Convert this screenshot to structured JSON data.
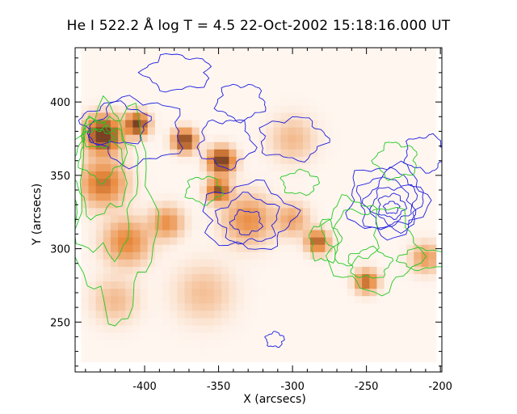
{
  "chart_data": {
    "type": "heatmap",
    "title": "He I  522.2 Å log T = 4.5 22-Oct-2002 15:18:16.000 UT",
    "xlabel": "X (arcsecs)",
    "ylabel": "Y (arcsecs)",
    "xlim": [
      -447,
      -199
    ],
    "ylim": [
      216,
      437
    ],
    "xticks": [
      -400,
      -350,
      -300,
      -250,
      -200
    ],
    "yticks": [
      250,
      300,
      350,
      400
    ],
    "image_extent": {
      "x": [
        -443,
        -203
      ],
      "y": [
        223,
        436
      ]
    },
    "colormap": "red temperature (white - orange - red - black)",
    "colors": {
      "image_low": "#fff6f0",
      "image_mid": "#e98a3e",
      "image_high": "#1a000d",
      "contour_a": "#1c1ce0",
      "contour_b": "#22c822",
      "axis": "#000000"
    },
    "bright_regions": [
      {
        "x": -428,
        "y": 378,
        "r": 11,
        "intensity": 1.0
      },
      {
        "x": -405,
        "y": 385,
        "r": 7,
        "intensity": 0.9
      },
      {
        "x": -373,
        "y": 374,
        "r": 7,
        "intensity": 0.85
      },
      {
        "x": -348,
        "y": 360,
        "r": 8,
        "intensity": 0.95
      },
      {
        "x": -350,
        "y": 340,
        "r": 7,
        "intensity": 0.75
      },
      {
        "x": -428,
        "y": 345,
        "r": 14,
        "intensity": 0.55
      },
      {
        "x": -412,
        "y": 305,
        "r": 14,
        "intensity": 0.45
      },
      {
        "x": -385,
        "y": 318,
        "r": 10,
        "intensity": 0.4
      },
      {
        "x": -330,
        "y": 320,
        "r": 15,
        "intensity": 0.4
      },
      {
        "x": -300,
        "y": 320,
        "r": 10,
        "intensity": 0.3
      },
      {
        "x": -283,
        "y": 305,
        "r": 7,
        "intensity": 0.65
      },
      {
        "x": -250,
        "y": 278,
        "r": 7,
        "intensity": 0.6
      },
      {
        "x": -210,
        "y": 294,
        "r": 9,
        "intensity": 0.35
      },
      {
        "x": -420,
        "y": 265,
        "r": 14,
        "intensity": 0.2
      },
      {
        "x": -360,
        "y": 270,
        "r": 18,
        "intensity": 0.18
      },
      {
        "x": -300,
        "y": 375,
        "r": 14,
        "intensity": 0.2
      }
    ],
    "contours_a": [
      {
        "x": -233,
        "y": 328,
        "rx": 5,
        "ry": 4
      },
      {
        "x": -233,
        "y": 329,
        "rx": 9,
        "ry": 8
      },
      {
        "x": -233,
        "y": 330,
        "rx": 13,
        "ry": 12
      },
      {
        "x": -233,
        "y": 331,
        "rx": 17,
        "ry": 16
      },
      {
        "x": -234,
        "y": 332,
        "rx": 21,
        "ry": 20
      },
      {
        "x": -236,
        "y": 333,
        "rx": 26,
        "ry": 24
      },
      {
        "x": -331,
        "y": 318,
        "rx": 10,
        "ry": 8
      },
      {
        "x": -330,
        "y": 320,
        "rx": 20,
        "ry": 16
      },
      {
        "x": -330,
        "y": 322,
        "rx": 30,
        "ry": 22
      },
      {
        "x": -345,
        "y": 372,
        "rx": 18,
        "ry": 16
      },
      {
        "x": -405,
        "y": 380,
        "rx": 30,
        "ry": 22
      },
      {
        "x": -420,
        "y": 385,
        "rx": 22,
        "ry": 14
      },
      {
        "x": -300,
        "y": 375,
        "rx": 22,
        "ry": 14
      },
      {
        "x": -335,
        "y": 400,
        "rx": 16,
        "ry": 12
      },
      {
        "x": -378,
        "y": 420,
        "rx": 22,
        "ry": 12
      },
      {
        "x": -312,
        "y": 238,
        "rx": 6,
        "ry": 5
      },
      {
        "x": -210,
        "y": 365,
        "rx": 14,
        "ry": 12
      }
    ],
    "contours_b": [
      {
        "x": -432,
        "y": 375,
        "rx": 10,
        "ry": 6
      },
      {
        "x": -430,
        "y": 365,
        "rx": 14,
        "ry": 18
      },
      {
        "x": -430,
        "y": 355,
        "rx": 18,
        "ry": 32
      },
      {
        "x": -428,
        "y": 345,
        "rx": 22,
        "ry": 50
      },
      {
        "x": -420,
        "y": 325,
        "rx": 26,
        "ry": 70
      },
      {
        "x": -260,
        "y": 312,
        "rx": 18,
        "ry": 22
      },
      {
        "x": -248,
        "y": 290,
        "rx": 14,
        "ry": 10
      },
      {
        "x": -245,
        "y": 300,
        "rx": 30,
        "ry": 28
      },
      {
        "x": -212,
        "y": 293,
        "rx": 16,
        "ry": 7
      },
      {
        "x": -278,
        "y": 305,
        "rx": 10,
        "ry": 14
      },
      {
        "x": -360,
        "y": 340,
        "rx": 12,
        "ry": 9
      },
      {
        "x": -230,
        "y": 360,
        "rx": 14,
        "ry": 12
      },
      {
        "x": -295,
        "y": 345,
        "rx": 12,
        "ry": 8
      }
    ]
  }
}
